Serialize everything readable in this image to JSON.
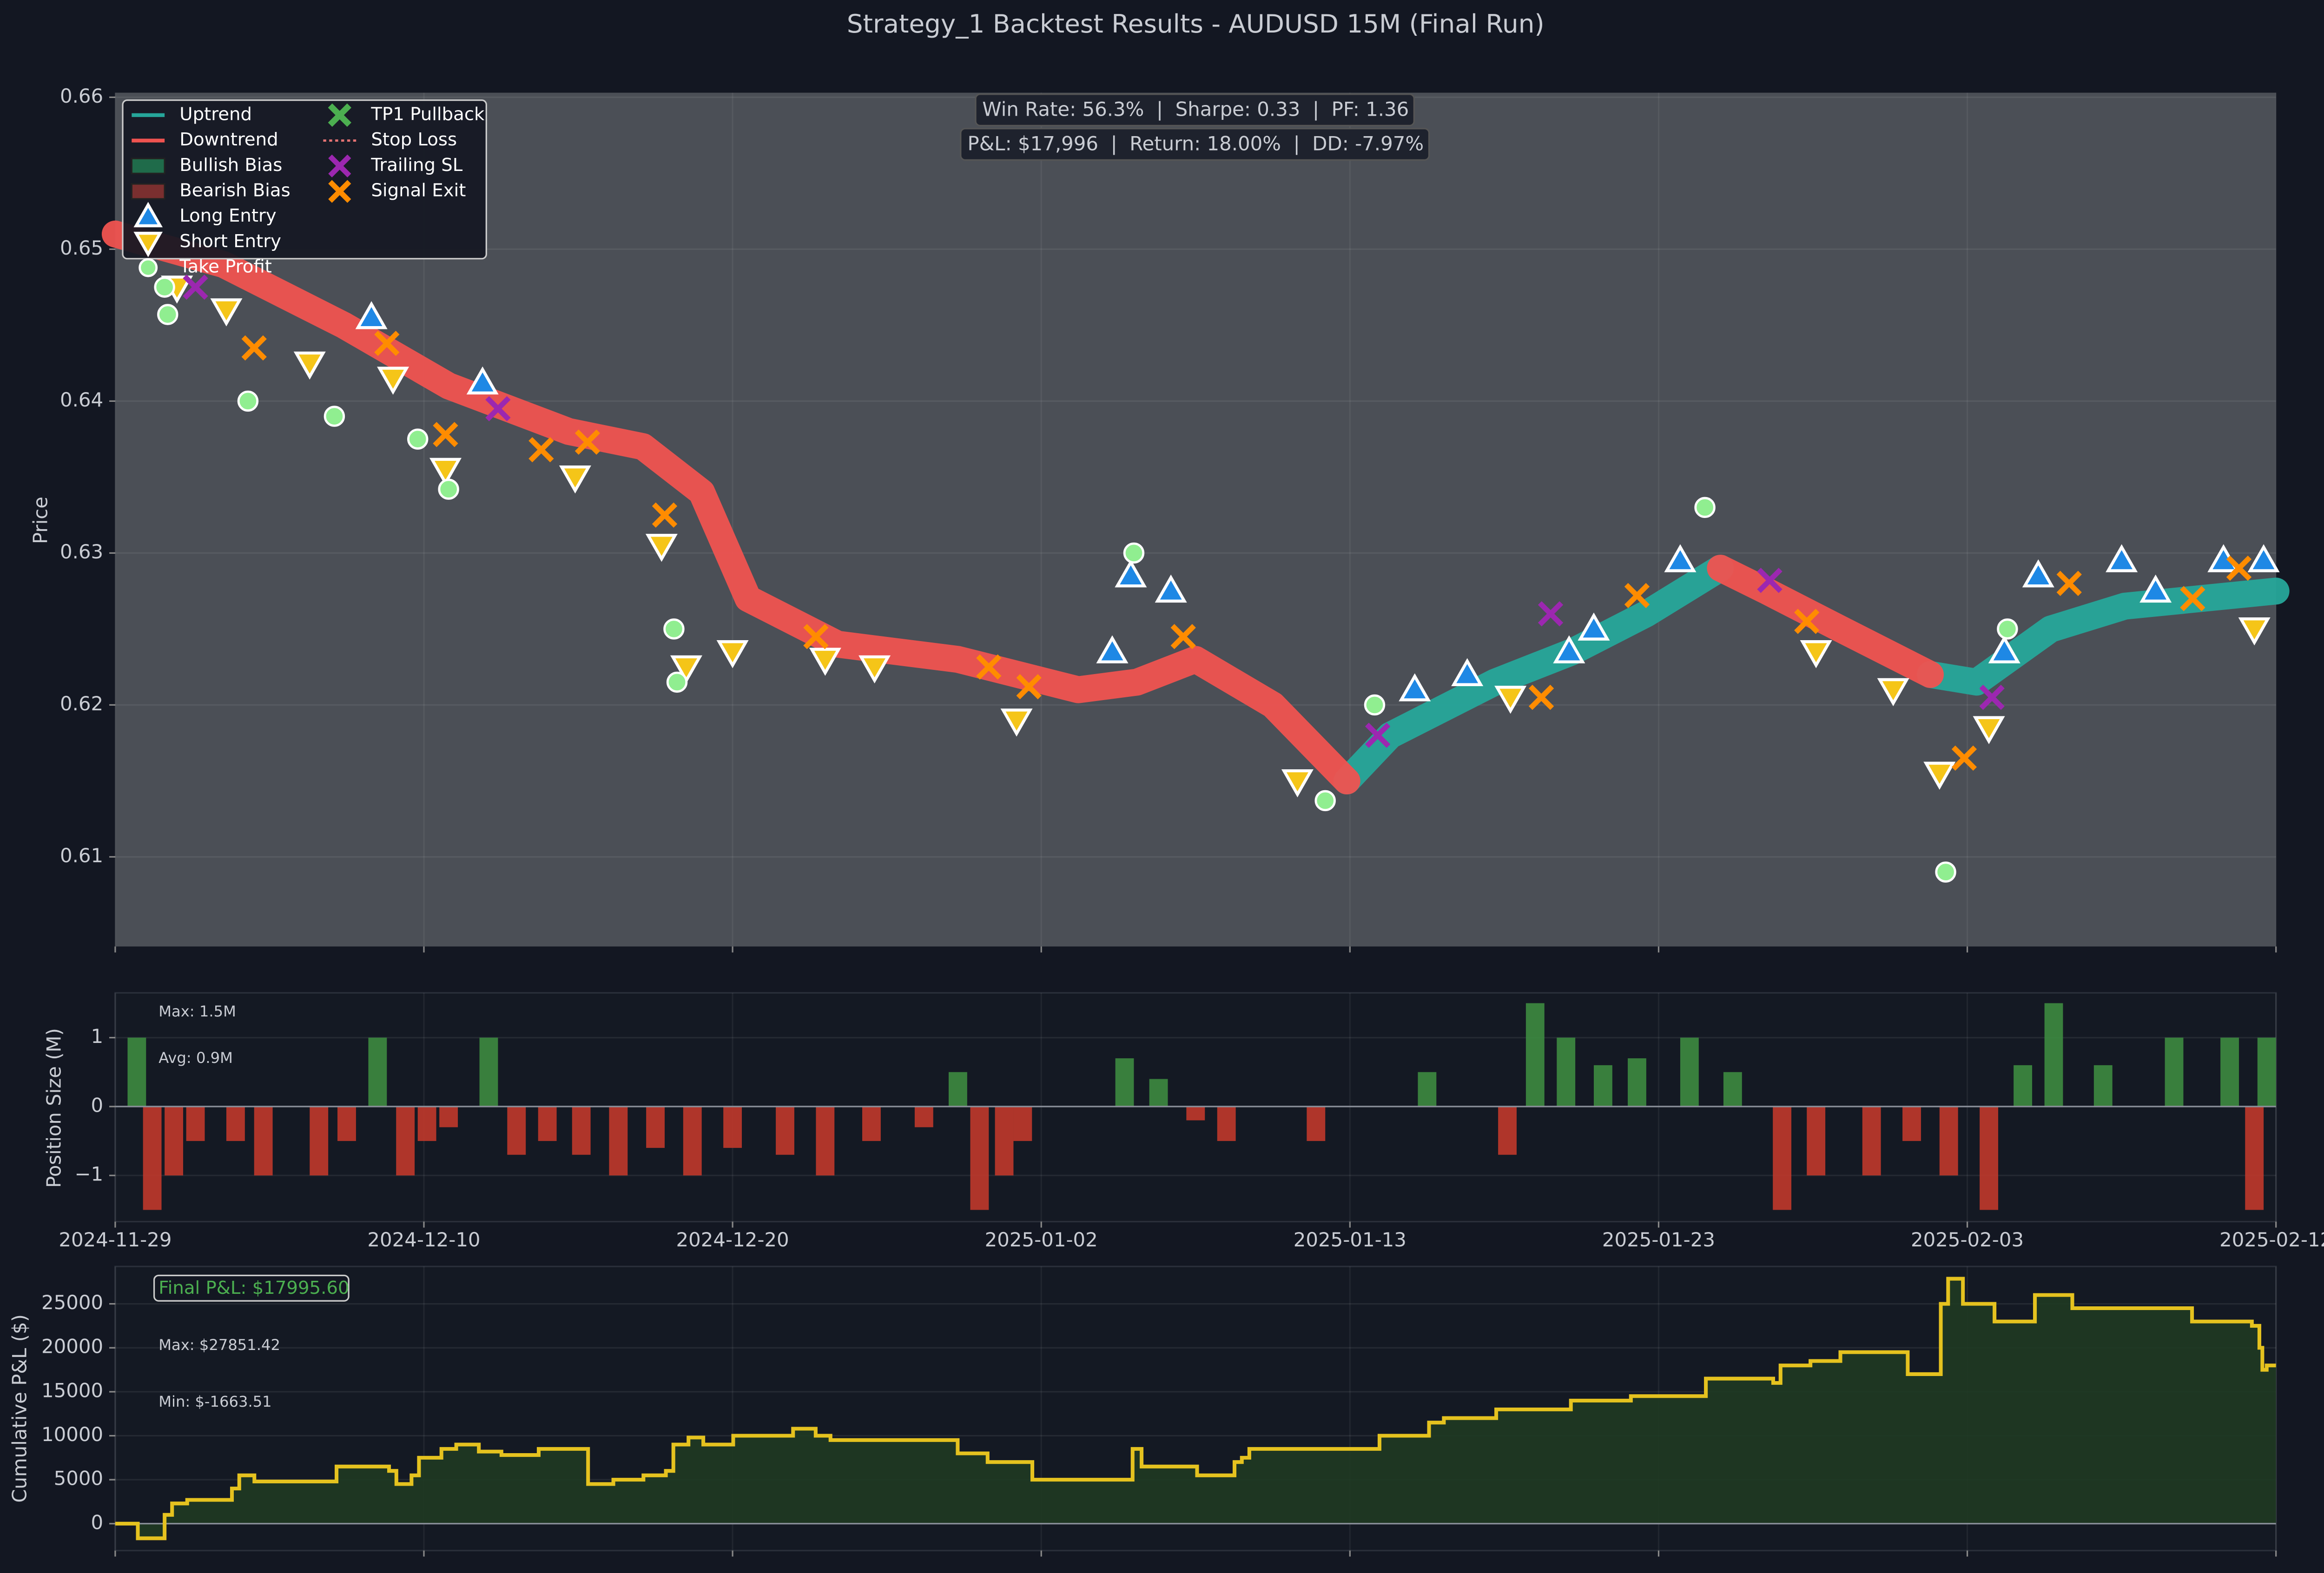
{
  "title": "Strategy_1 Backtest Results - AUDUSD 15M (Final Run)",
  "chart_data": [
    {
      "type": "line",
      "ylabel": "Price",
      "stats": [
        "Win Rate: 56.3%  |  Sharpe: 0.33  |  PF: 1.36",
        "P&L: $17,996  |  Return: 18.00%  |  DD: -7.97%"
      ],
      "xlim": [
        0,
        7
      ],
      "ylim": [
        0.6041,
        0.6603
      ],
      "yticks": [
        0.61,
        0.62,
        0.63,
        0.64,
        0.65,
        0.66
      ],
      "grid": true,
      "legend": "upper left",
      "series": [
        {
          "name": "Uptrend",
          "kind": "band-line",
          "color": "#26a69a",
          "x": [
            0,
            0.35,
            0.74,
            1.08,
            1.47,
            1.71,
            1.9,
            2.05,
            2.34,
            2.73,
            3.12,
            3.31,
            3.5,
            3.75,
            3.99,
            4.13,
            4.47,
            4.72,
            4.96,
            5.2,
            5.35,
            5.59,
            5.88,
            6.03,
            6.27,
            6.51,
            7.0
          ],
          "values": [
            null,
            null,
            null,
            null,
            null,
            null,
            null,
            null,
            null,
            null,
            null,
            null,
            null,
            null,
            0.615,
            0.618,
            0.6215,
            0.6235,
            0.626,
            0.629,
            null,
            null,
            0.622,
            0.6215,
            0.625,
            0.6265,
            0.6275
          ]
        },
        {
          "name": "Downtrend",
          "kind": "band-line",
          "color": "#ef5350",
          "x": [
            0,
            0.35,
            0.74,
            1.08,
            1.47,
            1.71,
            1.9,
            2.05,
            2.34,
            2.73,
            3.12,
            3.31,
            3.5,
            3.75,
            3.99,
            4.13,
            4.47,
            4.72,
            4.96,
            5.2,
            5.35,
            5.59,
            5.88,
            6.03,
            6.27,
            6.51,
            7.0
          ],
          "values": [
            0.651,
            0.649,
            0.645,
            0.641,
            0.638,
            0.637,
            0.634,
            0.627,
            0.624,
            0.623,
            0.621,
            0.6215,
            0.623,
            0.62,
            0.615,
            null,
            null,
            null,
            null,
            0.629,
            0.6275,
            0.625,
            0.622,
            null,
            null,
            null,
            null
          ]
        },
        {
          "name": "Bullish Bias",
          "kind": "band",
          "color": "#1f6b4a",
          "x": [],
          "values": []
        },
        {
          "name": "Bearish Bias",
          "kind": "band",
          "color": "#7a2f2f",
          "x": [],
          "values": []
        },
        {
          "name": "Long Entry",
          "kind": "triangle-up",
          "color": "#1e88e5",
          "x": [
            0.83,
            1.19,
            3.23,
            3.29,
            3.42,
            4.21,
            4.38,
            4.71,
            4.79,
            5.07,
            6.12,
            6.23,
            6.5,
            6.61,
            6.83,
            6.96
          ],
          "values": [
            0.6455,
            0.6412,
            0.6235,
            0.6285,
            0.6275,
            0.621,
            0.622,
            0.6235,
            0.625,
            0.6295,
            0.6235,
            0.6285,
            0.6295,
            0.6275,
            0.6295,
            0.6295
          ]
        },
        {
          "name": "Short Entry",
          "kind": "triangle-down",
          "color": "#f5c518",
          "x": [
            0.2,
            0.36,
            0.63,
            0.9,
            1.07,
            1.49,
            1.77,
            1.85,
            2.0,
            2.3,
            2.46,
            2.92,
            3.83,
            4.52,
            5.51,
            5.76,
            5.91,
            6.07,
            6.93
          ],
          "values": [
            0.6475,
            0.646,
            0.6425,
            0.6415,
            0.6355,
            0.635,
            0.6305,
            0.6225,
            0.6235,
            0.623,
            0.6225,
            0.619,
            0.615,
            0.6205,
            0.6235,
            0.621,
            0.6155,
            0.6185,
            0.625
          ]
        },
        {
          "name": "Take Profit",
          "kind": "circle",
          "color": "#90ee90",
          "x": [
            0.16,
            0.17,
            0.43,
            0.71,
            0.98,
            1.08,
            1.81,
            1.82,
            3.3,
            3.92,
            4.08,
            5.15,
            5.93,
            6.13
          ],
          "values": [
            0.6475,
            0.6457,
            0.64,
            0.639,
            0.6375,
            0.6342,
            0.625,
            0.6215,
            0.63,
            0.6137,
            0.62,
            0.633,
            0.609,
            0.625
          ]
        },
        {
          "name": "TP1 Pullback",
          "kind": "x-outline",
          "color": "#4caf50",
          "x": [],
          "values": []
        },
        {
          "name": "Stop Loss",
          "kind": "dotted",
          "color": "#e57373",
          "x": [],
          "values": []
        },
        {
          "name": "Trailing SL",
          "kind": "x",
          "color": "#9c27b0",
          "x": [
            0.26,
            1.24,
            4.09,
            4.65,
            5.36,
            6.08
          ],
          "values": [
            0.6475,
            0.6395,
            0.618,
            0.626,
            0.6282,
            0.6205
          ]
        },
        {
          "name": "Signal Exit",
          "kind": "x",
          "color": "#ff8c00",
          "x": [
            0.45,
            0.88,
            1.07,
            1.38,
            1.53,
            1.78,
            2.27,
            2.83,
            2.96,
            3.46,
            4.62,
            4.93,
            5.48,
            5.99,
            6.33,
            6.73,
            6.88
          ],
          "values": [
            0.6435,
            0.6438,
            0.6378,
            0.6368,
            0.6373,
            0.6325,
            0.6245,
            0.6225,
            0.6212,
            0.6245,
            0.6205,
            0.6272,
            0.6255,
            0.6165,
            0.628,
            0.627,
            0.629
          ]
        }
      ]
    },
    {
      "type": "bar",
      "ylabel": "Position Size (M)",
      "annotations": [
        "Max: 1.5M",
        "Avg: 0.9M"
      ],
      "xlim": [
        0,
        7
      ],
      "xticks": [
        {
          "value": 0,
          "label": "2024-11-29"
        },
        {
          "value": 1,
          "label": "2024-12-10"
        },
        {
          "value": 2,
          "label": "2024-12-20"
        },
        {
          "value": 3,
          "label": "2025-01-02"
        },
        {
          "value": 4,
          "label": "2025-01-13"
        },
        {
          "value": 5,
          "label": "2025-01-23"
        },
        {
          "value": 6,
          "label": "2025-02-03"
        },
        {
          "value": 7,
          "label": "2025-02-12"
        }
      ],
      "ylim": [
        -1.67,
        1.65
      ],
      "yticks": [
        {
          "value": -1,
          "label": "−1"
        },
        0,
        1
      ],
      "grid": true,
      "colors": {
        "positive": "#3d8b40",
        "negative": "#c0392b"
      },
      "x": [
        0.07,
        0.12,
        0.19,
        0.26,
        0.39,
        0.48,
        0.66,
        0.75,
        0.85,
        0.94,
        1.01,
        1.08,
        1.21,
        1.3,
        1.4,
        1.51,
        1.63,
        1.75,
        1.87,
        2.0,
        2.17,
        2.3,
        2.45,
        2.62,
        2.73,
        2.8,
        2.88,
        2.94,
        3.27,
        3.38,
        3.5,
        3.6,
        3.89,
        4.25,
        4.51,
        4.6,
        4.7,
        4.82,
        4.93,
        5.1,
        5.24,
        5.4,
        5.51,
        5.69,
        5.82,
        5.94,
        6.07,
        6.18,
        6.28,
        6.44,
        6.67,
        6.85,
        6.93,
        6.97
      ],
      "values": [
        1,
        -1.5,
        -1,
        -0.5,
        -0.5,
        -1,
        -1,
        -0.5,
        1,
        -1,
        -0.5,
        -0.3,
        1,
        -0.7,
        -0.5,
        -0.7,
        -1,
        -0.6,
        -1,
        -0.6,
        -0.7,
        -1,
        -0.5,
        -0.3,
        0.5,
        -1.5,
        -1,
        -0.5,
        0.7,
        0.4,
        -0.2,
        -0.5,
        -0.5,
        0.5,
        -0.7,
        1.5,
        1,
        0.6,
        0.7,
        1,
        0.5,
        -1.5,
        -1,
        -1,
        -0.5,
        -1,
        -1.5,
        0.6,
        1.5,
        0.6,
        1,
        1,
        -1.5,
        1
      ]
    },
    {
      "type": "step",
      "ylabel": "Cumulative P&L ($)",
      "annotations": [
        "Final P&L: $17995.60",
        "Max: $27851.42",
        "Min: $-1663.51"
      ],
      "xlim": [
        0,
        7
      ],
      "ylim": [
        -3061,
        29250
      ],
      "yticks": [
        0,
        5000,
        10000,
        15000,
        20000,
        25000
      ],
      "grid": true,
      "color": "#e5c21f",
      "fill": "#1f3a22",
      "x": [
        0,
        0.073,
        0.16,
        0.184,
        0.233,
        0.378,
        0.402,
        0.451,
        0.717,
        0.887,
        0.911,
        0.96,
        0.984,
        1.057,
        1.105,
        1.178,
        1.251,
        1.372,
        1.532,
        1.614,
        1.711,
        1.784,
        1.808,
        1.857,
        1.905,
        2.002,
        2.196,
        2.269,
        2.317,
        2.729,
        2.826,
        2.971,
        3.296,
        3.325,
        3.505,
        3.626,
        3.65,
        3.674,
        4.096,
        4.256,
        4.304,
        4.474,
        4.716,
        4.91,
        5.153,
        5.371,
        5.395,
        5.492,
        5.589,
        5.807,
        5.914,
        5.938,
        5.986,
        6.088,
        6.219,
        6.34,
        6.728,
        6.922,
        6.946,
        6.956,
        6.97,
        7.0
      ],
      "values": [
        0,
        -1663.51,
        1000,
        2300,
        2700,
        4000,
        5500,
        4800,
        6500,
        6000,
        4500,
        5500,
        7500,
        8500,
        9000,
        8200,
        7800,
        8500,
        4500,
        5000,
        5500,
        6000,
        9000,
        9800,
        9000,
        10000,
        10800,
        10000,
        9500,
        8000,
        7000,
        5000,
        8500,
        6500,
        5500,
        7000,
        7500,
        8500,
        10000,
        11500,
        12000,
        13000,
        14000,
        14500,
        16500,
        16000,
        18000,
        18500,
        19500,
        17000,
        25000,
        27851.42,
        25000,
        23000,
        26000,
        24500,
        23000,
        22500,
        20000,
        17500,
        18000,
        17995.6
      ]
    }
  ]
}
